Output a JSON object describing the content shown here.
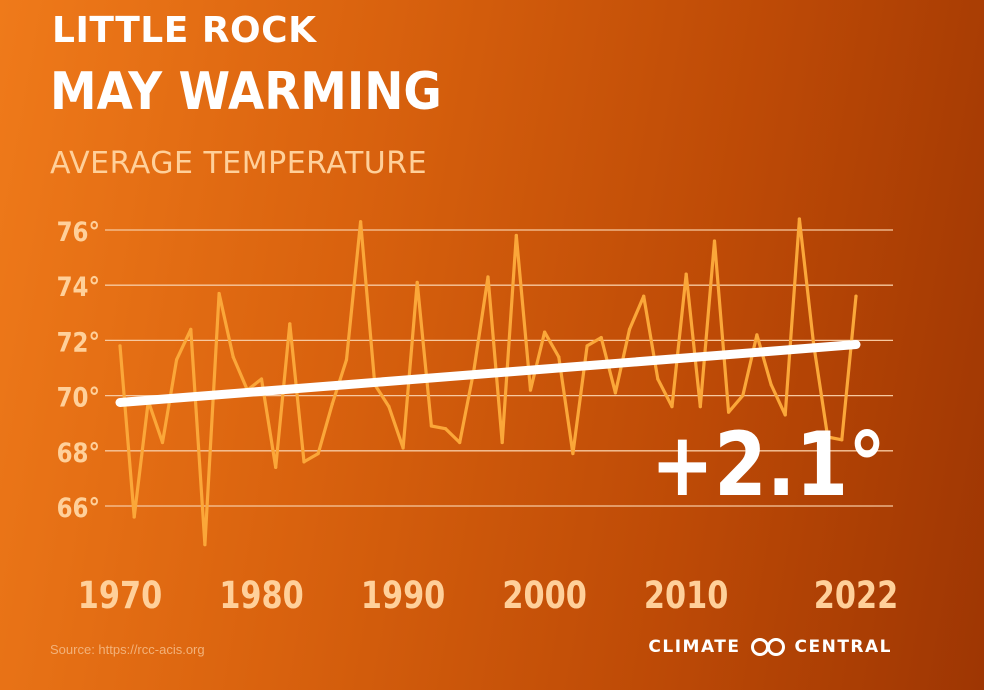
{
  "header": {
    "title_line1": "LITTLE ROCK",
    "title_line2": "MAY WARMING",
    "subtitle": "AVERAGE TEMPERATURE"
  },
  "footer": {
    "source": "Source: https://rcc-acis.org",
    "brand_left": "CLIMATE",
    "brand_right": "CENTRAL"
  },
  "colors": {
    "series_line": "#fba739",
    "trend_line": "#ffffff",
    "grid": "#f7c9a0",
    "tick_text": "#ffd09a"
  },
  "chart_data": {
    "type": "line",
    "title": "MAY WARMING",
    "subtitle": "AVERAGE TEMPERATURE",
    "xlabel": "",
    "ylabel": "",
    "xlim": [
      1970,
      2022
    ],
    "ylim": [
      64.5,
      77
    ],
    "grid": true,
    "yticks": [
      66,
      68,
      70,
      72,
      74,
      76
    ],
    "ytick_labels": [
      "66°",
      "68°",
      "70°",
      "72°",
      "74°",
      "76°"
    ],
    "xticks": [
      1970,
      1980,
      1990,
      2000,
      2010,
      2022
    ],
    "xtick_labels": [
      "1970",
      "1980",
      "1990",
      "2000",
      "2010",
      "2022"
    ],
    "series": [
      {
        "values": [
          71.8,
          65.6,
          69.8,
          68.3,
          71.3,
          72.4,
          64.6,
          73.7,
          71.4,
          70.2,
          70.6,
          67.4,
          72.6,
          67.6,
          67.9,
          69.7,
          71.3,
          76.3,
          70.4,
          69.6,
          68.1,
          74.1,
          68.9,
          68.8,
          68.3,
          70.9,
          74.3,
          68.3,
          75.8,
          70.2,
          72.3,
          71.4,
          67.9,
          71.8,
          72.1,
          70.1,
          72.4,
          73.6,
          70.6,
          69.6,
          74.4,
          69.6,
          75.6,
          69.4,
          70.0,
          72.2,
          70.4,
          69.3,
          76.4,
          71.9,
          68.5,
          68.4,
          73.6
        ]
      }
    ],
    "x": [
      1970,
      1971,
      1972,
      1973,
      1974,
      1975,
      1976,
      1977,
      1978,
      1979,
      1980,
      1981,
      1982,
      1983,
      1984,
      1985,
      1986,
      1987,
      1988,
      1989,
      1990,
      1991,
      1992,
      1993,
      1994,
      1995,
      1996,
      1997,
      1998,
      1999,
      2000,
      2001,
      2002,
      2003,
      2004,
      2005,
      2006,
      2007,
      2008,
      2009,
      2010,
      2011,
      2012,
      2013,
      2014,
      2015,
      2016,
      2017,
      2018,
      2019,
      2020,
      2021,
      2022
    ],
    "trend": {
      "start": [
        1970,
        69.75
      ],
      "end": [
        2022,
        71.85
      ]
    },
    "annotation": "+2.1°"
  }
}
